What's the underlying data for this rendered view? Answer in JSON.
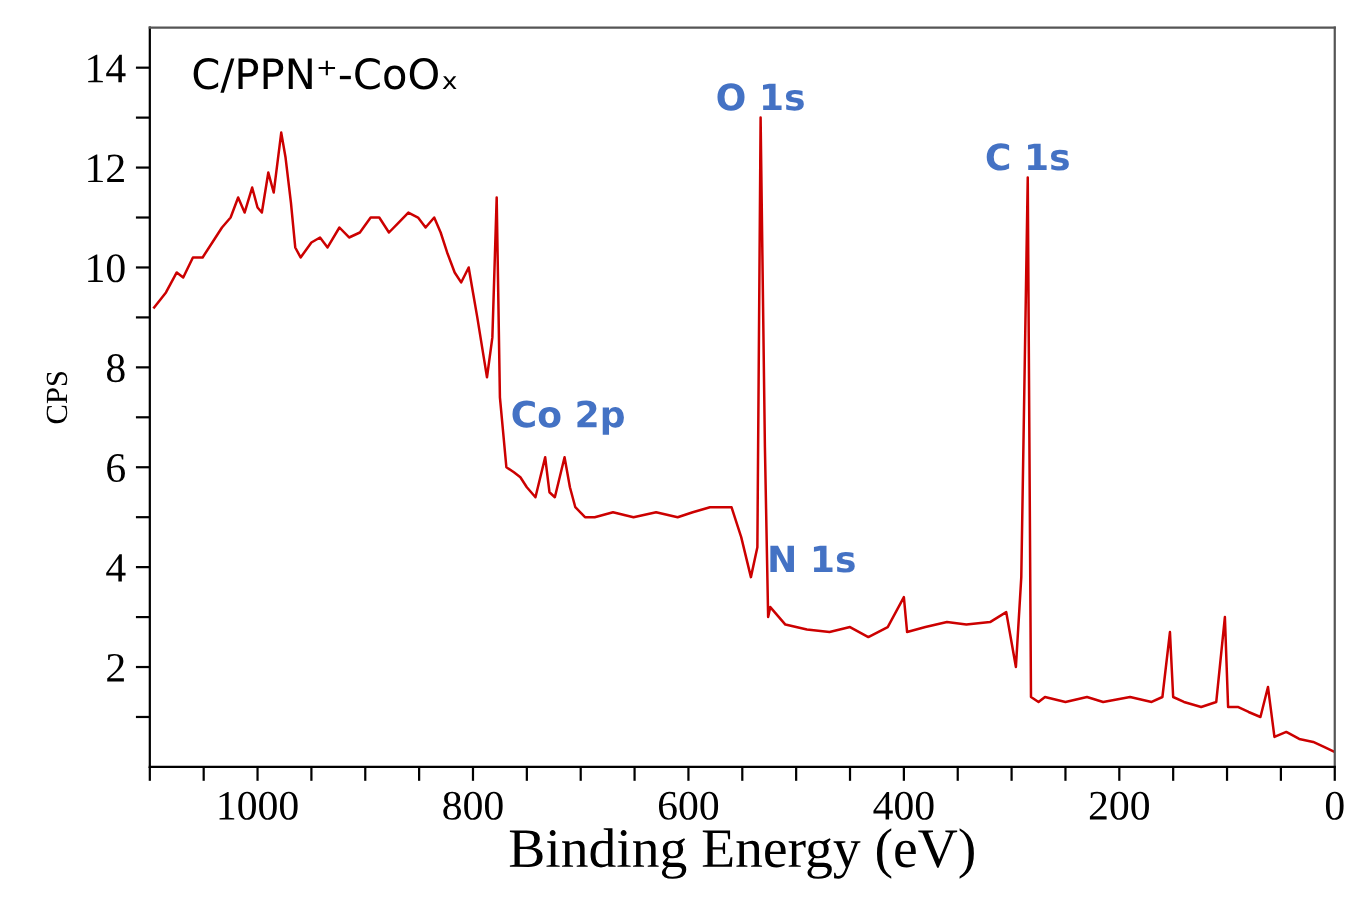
{
  "chart_data": {
    "type": "line",
    "xlabel": "Binding Energy (eV)",
    "ylabel": "CPS",
    "x": [
      1096,
      1085,
      1075,
      1069,
      1060,
      1051,
      1042,
      1033,
      1025,
      1018,
      1012,
      1005,
      1000,
      996,
      990,
      985,
      978,
      974,
      969,
      965,
      960,
      950,
      942,
      935,
      924,
      915,
      905,
      895,
      887,
      878,
      869,
      860,
      851,
      844,
      836,
      830,
      824,
      817,
      811,
      804,
      800,
      796,
      790,
      787,
      782,
      778,
      775,
      769,
      762,
      756,
      750,
      742,
      733,
      729,
      724,
      715,
      710,
      705,
      696,
      687,
      670,
      651,
      630,
      610,
      596,
      580,
      560,
      551,
      542,
      536,
      533,
      529,
      526,
      524,
      510,
      490,
      469,
      450,
      433,
      415,
      400,
      397,
      380,
      360,
      342,
      320,
      305,
      296,
      291,
      285,
      282,
      275,
      269,
      250,
      230,
      215,
      190,
      170,
      160,
      153,
      150,
      140,
      124,
      110,
      102,
      99,
      90,
      80,
      69,
      62,
      56,
      45,
      33,
      20,
      10,
      0
    ],
    "series": [
      {
        "color": "#cc0000",
        "values": [
          9.2,
          9.5,
          9.9,
          9.8,
          10.2,
          10.2,
          10.5,
          10.8,
          11.0,
          11.4,
          11.1,
          11.6,
          11.2,
          11.1,
          11.9,
          11.5,
          12.7,
          12.2,
          11.3,
          10.4,
          10.2,
          10.5,
          10.6,
          10.4,
          10.8,
          10.6,
          10.7,
          11.0,
          11.0,
          10.7,
          10.9,
          11.1,
          11.0,
          10.8,
          11.0,
          10.7,
          10.3,
          9.9,
          9.7,
          10.0,
          9.5,
          9.0,
          8.2,
          7.8,
          8.6,
          11.4,
          7.4,
          6.0,
          5.9,
          5.8,
          5.6,
          5.4,
          6.2,
          5.5,
          5.4,
          6.2,
          5.6,
          5.2,
          5.0,
          5.0,
          5.1,
          5.0,
          5.1,
          5.0,
          5.1,
          5.2,
          5.2,
          4.6,
          3.8,
          4.4,
          13.0,
          6.4,
          3.0,
          3.2,
          2.85,
          2.75,
          2.7,
          2.8,
          2.6,
          2.8,
          3.4,
          2.7,
          2.8,
          2.9,
          2.85,
          2.9,
          3.1,
          2.0,
          3.8,
          11.8,
          1.4,
          1.3,
          1.4,
          1.3,
          1.4,
          1.3,
          1.4,
          1.3,
          1.4,
          2.7,
          1.4,
          1.3,
          1.2,
          1.3,
          3.0,
          1.2,
          1.2,
          1.1,
          1.0,
          1.6,
          0.6,
          0.7,
          0.56,
          0.5,
          0.4,
          0.3
        ]
      }
    ],
    "xlim": [
      1100,
      0
    ],
    "xticks": [
      {
        "value": 1100,
        "label": null
      },
      {
        "value": 1050,
        "label": null
      },
      1000,
      {
        "value": 950,
        "label": null
      },
      {
        "value": 900,
        "label": null
      },
      {
        "value": 850,
        "label": null
      },
      800,
      {
        "value": 750,
        "label": null
      },
      {
        "value": 700,
        "label": null
      },
      {
        "value": 650,
        "label": null
      },
      600,
      {
        "value": 550,
        "label": null
      },
      {
        "value": 500,
        "label": null
      },
      {
        "value": 450,
        "label": null
      },
      400,
      {
        "value": 350,
        "label": null
      },
      {
        "value": 300,
        "label": null
      },
      {
        "value": 250,
        "label": null
      },
      200,
      {
        "value": 150,
        "label": null
      },
      {
        "value": 100,
        "label": null
      },
      {
        "value": 50,
        "label": null
      },
      0
    ],
    "ylim": [
      0,
      14.8
    ],
    "yticks": [
      {
        "value": 1,
        "label": null
      },
      2,
      {
        "value": 3,
        "label": null
      },
      4,
      {
        "value": 5,
        "label": null
      },
      6,
      {
        "value": 7,
        "label": null
      },
      8,
      {
        "value": 9,
        "label": null
      },
      10,
      {
        "value": 11,
        "label": null
      },
      12,
      {
        "value": 13,
        "label": null
      },
      14
    ],
    "grid": false,
    "legend": false,
    "annotations": [
      "C/PPN⁺-CoOₓ",
      {
        "text": "O 1s",
        "x": 533,
        "y": 13.0
      },
      {
        "text": "C 1s",
        "x": 285,
        "y": 11.8
      },
      {
        "text": "Co 2p",
        "x": 765,
        "y": 7.0
      },
      {
        "text": "N 1s",
        "x": 527,
        "y": 4.1
      }
    ]
  }
}
